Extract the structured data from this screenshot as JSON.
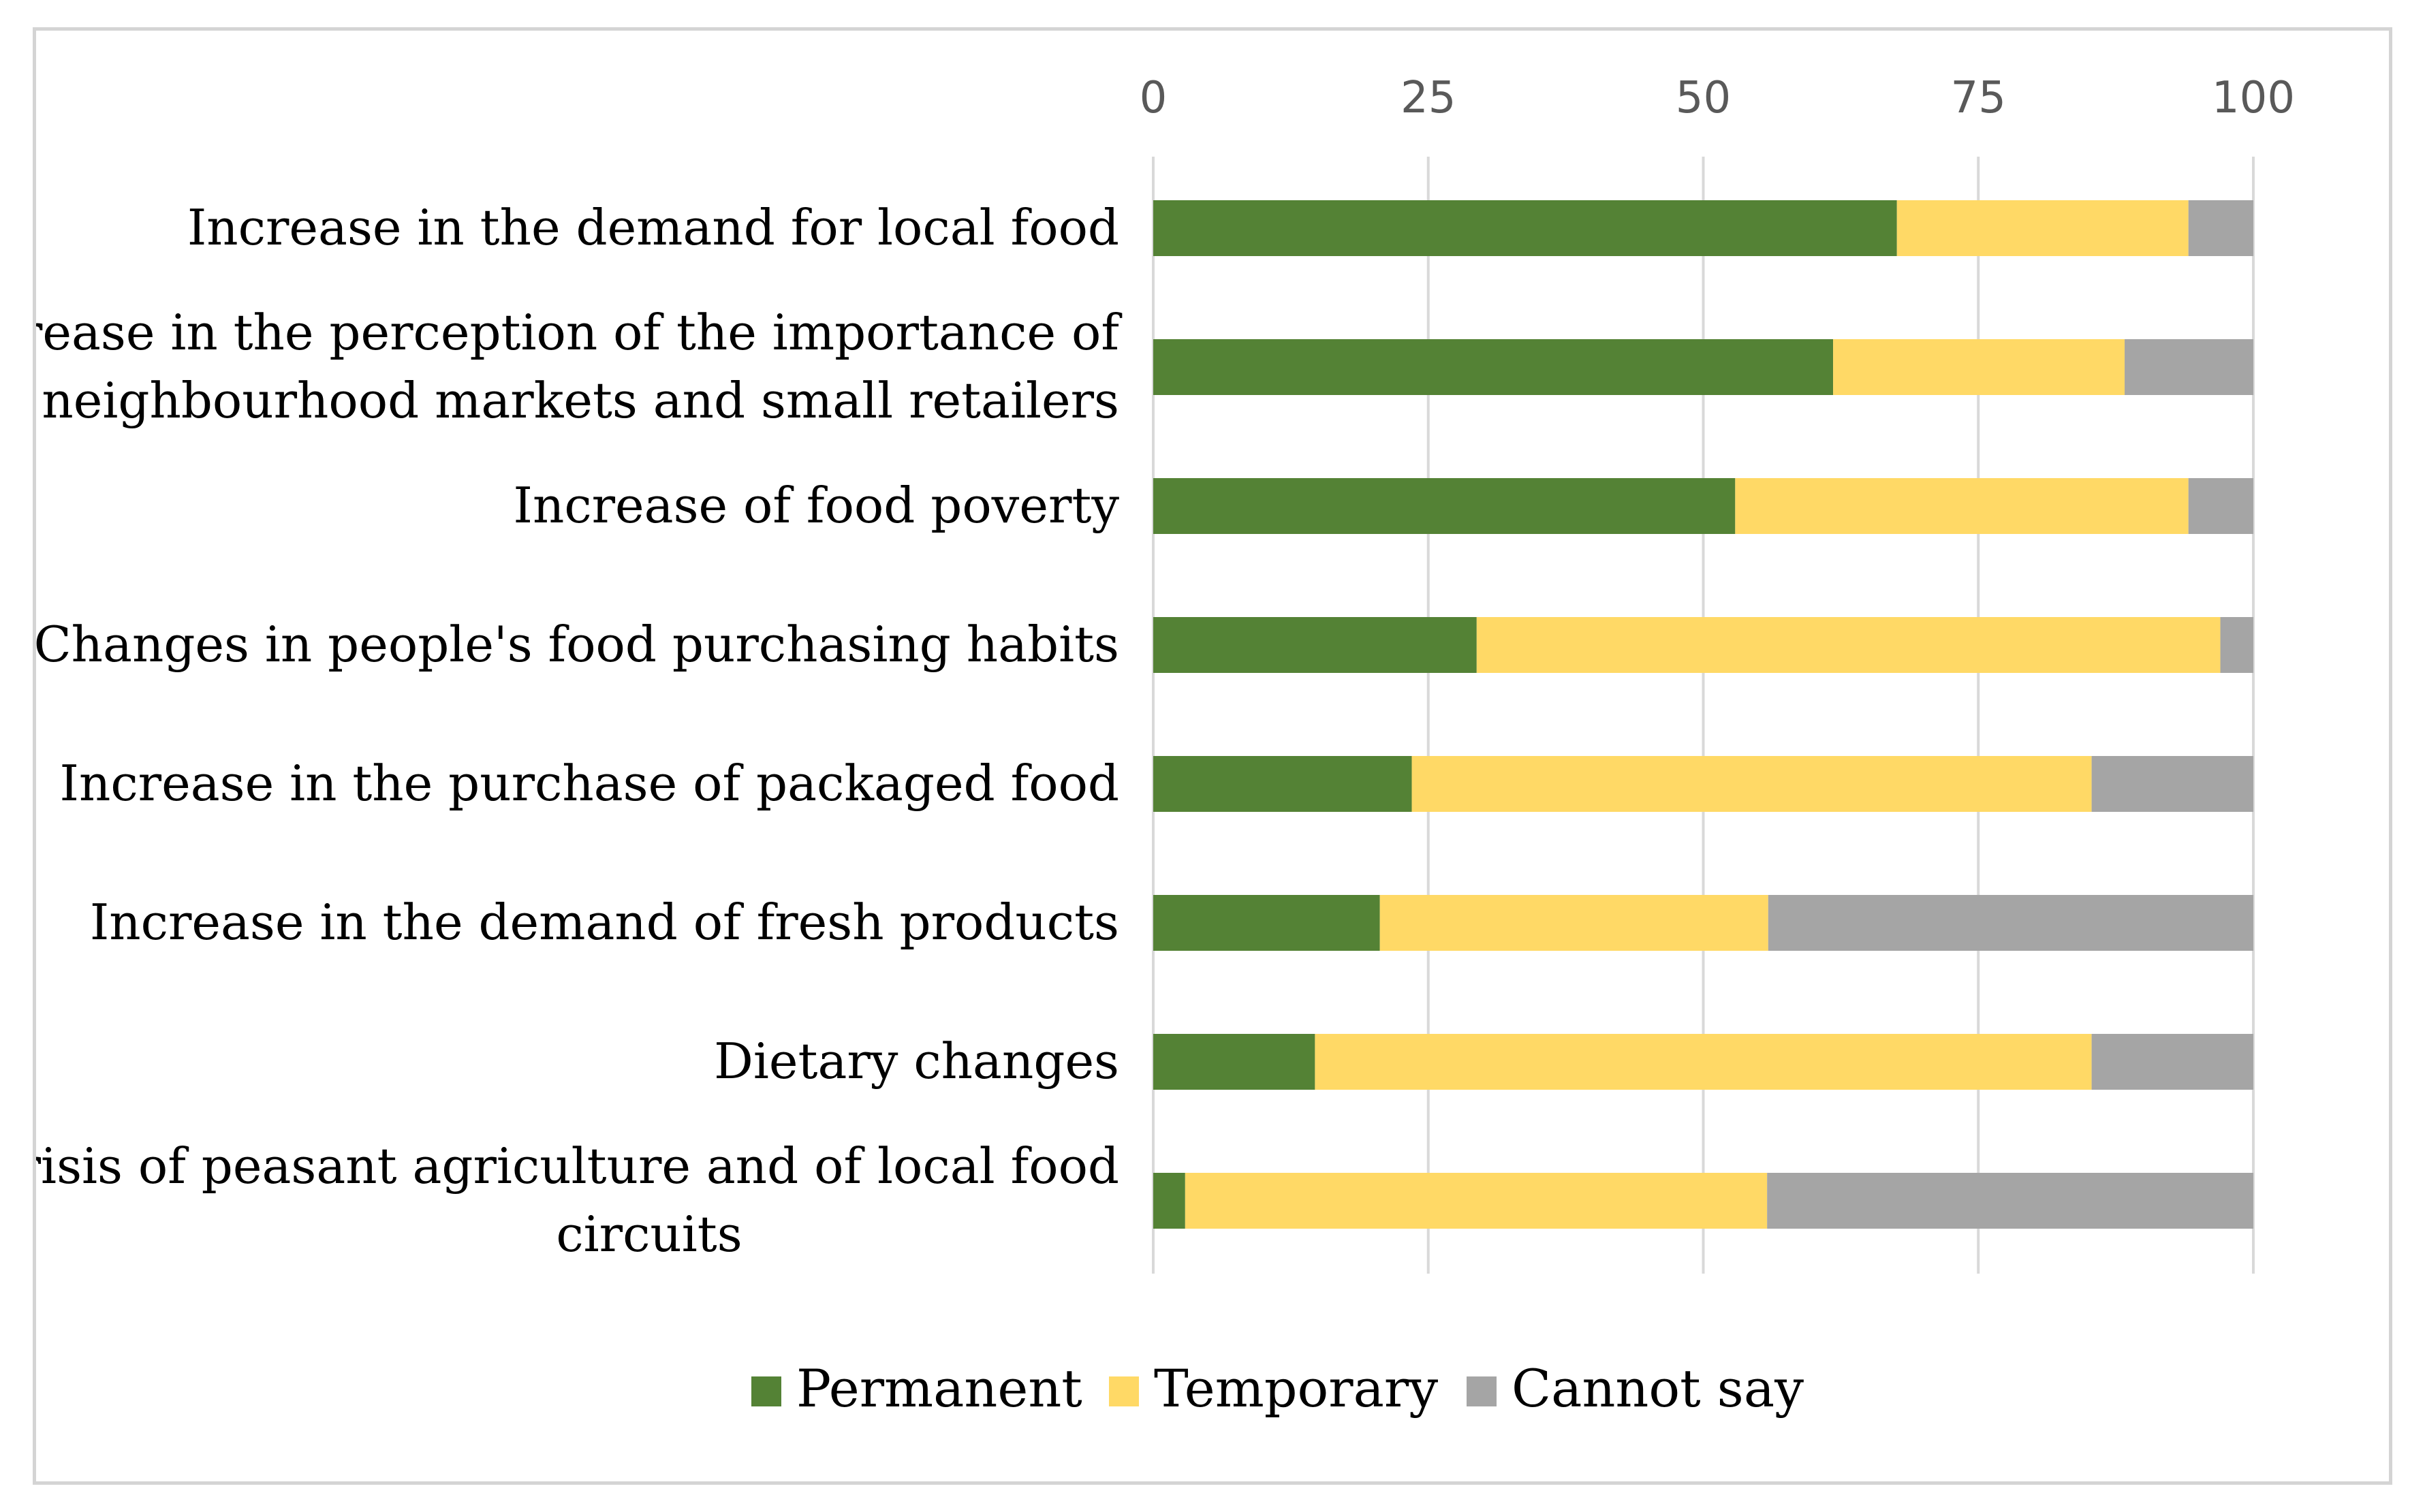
{
  "chart_data": {
    "type": "bar",
    "orientation": "horizontal",
    "stacked": true,
    "title": "",
    "xlabel": "",
    "ylabel": "",
    "xlim": [
      0,
      100
    ],
    "xticks": [
      "0",
      "25",
      "50",
      "75",
      "100"
    ],
    "grid": true,
    "legend_position": "bottom",
    "categories": [
      [
        "Increase in the demand for local food"
      ],
      [
        "Increase in the perception of the importance of",
        "neighbourhood markets and small retailers"
      ],
      [
        "Increase of food poverty"
      ],
      [
        "Changes in people's food purchasing habits"
      ],
      [
        "Increase in the purchase of packaged food"
      ],
      [
        "Increase in the demand of fresh products"
      ],
      [
        "Dietary changes"
      ],
      [
        "Crisis of peasant agriculture and of local food",
        "circuits"
      ]
    ],
    "series": [
      {
        "name": "Permanent",
        "color": "#548235",
        "values": [
          67.6,
          61.8,
          52.9,
          29.4,
          23.5,
          20.6,
          14.7,
          2.9
        ]
      },
      {
        "name": "Temporary",
        "color": "#ffd966",
        "values": [
          26.5,
          26.5,
          41.2,
          67.6,
          61.8,
          35.3,
          70.6,
          52.9
        ]
      },
      {
        "name": "Cannot say",
        "color": "#a5a5a5",
        "values": [
          5.9,
          11.7,
          5.9,
          3.0,
          14.7,
          44.1,
          14.7,
          44.2
        ]
      }
    ]
  }
}
